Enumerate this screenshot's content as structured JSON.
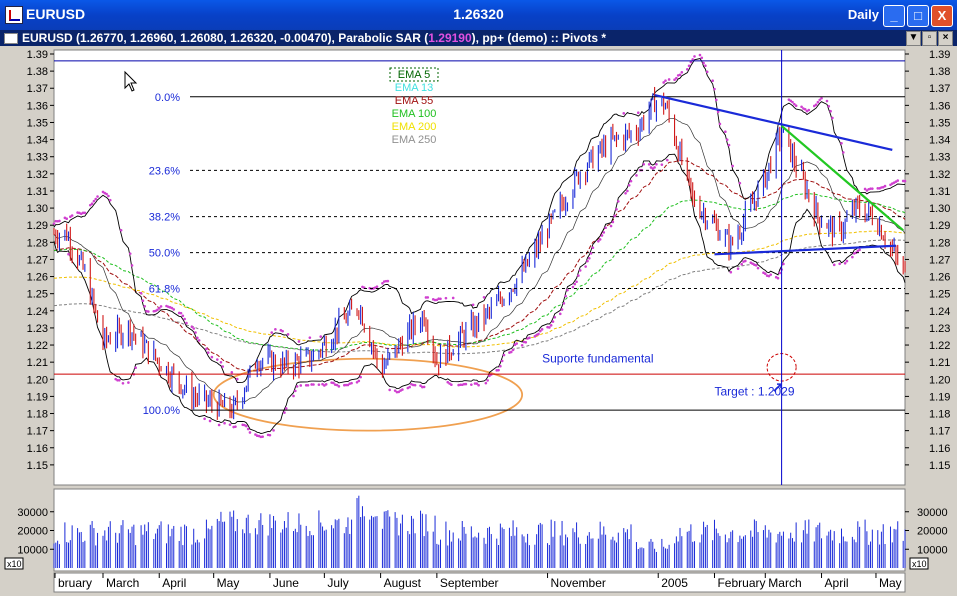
{
  "window": {
    "symbol": "EURUSD",
    "price": "1.26320",
    "period": "Daily",
    "min_label": "_",
    "max_label": "□",
    "close_label": "X",
    "colors": {
      "title_bg": "#0a4fd8",
      "info_bg": "#0a246a"
    }
  },
  "infobar": {
    "quote": "EURUSD (1.26770, 1.26960, 1.26080, 1.26320, -0.00470),",
    "sar_text": "Parabolic SAR",
    "sar_open": "(",
    "sar_value": "1.29190",
    "sar_close": "),",
    "tail": "pp+ (demo) :: Pivots *",
    "btn_min": "▼",
    "btn_restore": "▫",
    "btn_close": "×"
  },
  "chart_data": {
    "type": "candlestick",
    "symbol": "EURUSD",
    "price_axis": {
      "min": 1.14,
      "max": 1.39,
      "tick_step": 0.01,
      "tick_labels": [
        "1.39",
        "1.38",
        "1.37",
        "1.36",
        "1.35",
        "1.34",
        "1.33",
        "1.32",
        "1.31",
        "1.30",
        "1.29",
        "1.28",
        "1.27",
        "1.26",
        "1.25",
        "1.24",
        "1.23",
        "1.22",
        "1.21",
        "1.20",
        "1.19",
        "1.18",
        "1.17",
        "1.16",
        "1.15"
      ]
    },
    "volume_axis": {
      "multiplier_label": "x10",
      "tick_labels": [
        "30000",
        "20000",
        "10000"
      ],
      "tick_values": [
        30000,
        20000,
        10000
      ]
    },
    "time_axis": {
      "labels": [
        "bruary",
        "March",
        "April",
        "May",
        "June",
        "July",
        "August",
        "September",
        "November",
        "2005",
        "February",
        "March",
        "April",
        "May"
      ],
      "label_dates": [
        "2004-02-10",
        "2004-03-01",
        "2004-04-01",
        "2004-05-01",
        "2004-06-01",
        "2004-07-01",
        "2004-08-01",
        "2004-09-01",
        "2004-11-01",
        "2005-01-01",
        "2005-02-01",
        "2005-03-01",
        "2005-04-01",
        "2005-05-01"
      ]
    },
    "price_path": [
      {
        "date": "2004-02-10",
        "price": 1.285
      },
      {
        "date": "2004-02-20",
        "price": 1.262
      },
      {
        "date": "2004-03-01",
        "price": 1.222
      },
      {
        "date": "2004-03-15",
        "price": 1.23
      },
      {
        "date": "2004-04-01",
        "price": 1.21
      },
      {
        "date": "2004-04-20",
        "price": 1.19
      },
      {
        "date": "2004-05-01",
        "price": 1.185
      },
      {
        "date": "2004-05-12",
        "price": 1.182
      },
      {
        "date": "2004-05-25",
        "price": 1.212
      },
      {
        "date": "2004-06-10",
        "price": 1.208
      },
      {
        "date": "2004-06-25",
        "price": 1.213
      },
      {
        "date": "2004-07-10",
        "price": 1.232
      },
      {
        "date": "2004-07-20",
        "price": 1.243
      },
      {
        "date": "2004-08-01",
        "price": 1.205
      },
      {
        "date": "2004-08-15",
        "price": 1.225
      },
      {
        "date": "2004-08-25",
        "price": 1.238
      },
      {
        "date": "2004-09-01",
        "price": 1.21
      },
      {
        "date": "2004-09-15",
        "price": 1.225
      },
      {
        "date": "2004-10-01",
        "price": 1.24
      },
      {
        "date": "2004-10-20",
        "price": 1.265
      },
      {
        "date": "2004-11-05",
        "price": 1.295
      },
      {
        "date": "2004-11-20",
        "price": 1.323
      },
      {
        "date": "2004-12-05",
        "price": 1.338
      },
      {
        "date": "2004-12-20",
        "price": 1.345
      },
      {
        "date": "2004-12-30",
        "price": 1.362
      },
      {
        "date": "2005-01-05",
        "price": 1.36
      },
      {
        "date": "2005-01-20",
        "price": 1.305
      },
      {
        "date": "2005-02-01",
        "price": 1.29
      },
      {
        "date": "2005-02-10",
        "price": 1.278
      },
      {
        "date": "2005-02-20",
        "price": 1.298
      },
      {
        "date": "2005-03-01",
        "price": 1.318
      },
      {
        "date": "2005-03-10",
        "price": 1.345
      },
      {
        "date": "2005-03-20",
        "price": 1.32
      },
      {
        "date": "2005-03-30",
        "price": 1.295
      },
      {
        "date": "2005-04-10",
        "price": 1.285
      },
      {
        "date": "2005-04-20",
        "price": 1.3
      },
      {
        "date": "2005-04-30",
        "price": 1.295
      },
      {
        "date": "2005-05-10",
        "price": 1.275
      },
      {
        "date": "2005-05-16",
        "price": 1.263
      }
    ],
    "fibonacci": [
      {
        "label": "0.0%",
        "price": 1.365
      },
      {
        "label": "23.6%",
        "price": 1.322
      },
      {
        "label": "38.2%",
        "price": 1.295
      },
      {
        "label": "50.0%",
        "price": 1.274
      },
      {
        "label": "61.8%",
        "price": 1.253
      },
      {
        "label": "100.0%",
        "price": 1.182
      }
    ],
    "horizontal_lines": [
      {
        "price": 1.386,
        "color": "#0000aa"
      },
      {
        "price": 1.203,
        "color": "#cc0000"
      }
    ],
    "vertical_marker": {
      "date": "2005-03-10",
      "color": "#0000cc"
    },
    "trendlines": [
      {
        "from": {
          "date": "2004-12-30",
          "price": 1.366
        },
        "to": {
          "date": "2005-05-10",
          "price": 1.334
        },
        "color": "#1a2ad8"
      },
      {
        "from": {
          "date": "2005-02-01",
          "price": 1.273
        },
        "to": {
          "date": "2005-05-12",
          "price": 1.278
        },
        "color": "#1a2ad8"
      },
      {
        "from": {
          "date": "2005-03-10",
          "price": 1.348
        },
        "to": {
          "date": "2005-05-16",
          "price": 1.287
        },
        "color": "#22c822"
      }
    ],
    "ellipses": [
      {
        "center": {
          "date": "2004-07-25",
          "price": 1.191
        },
        "radius_days": 85,
        "radius_price": 0.021,
        "color": "#f0a050"
      },
      {
        "center": {
          "date": "2005-03-10",
          "price": 1.207
        },
        "radius_days": 8,
        "radius_price": 0.008,
        "color": "#cc0000",
        "dashed": true
      }
    ],
    "ema_legend": [
      {
        "label": "EMA 5",
        "color": "#006400",
        "boxed": true
      },
      {
        "label": "EMA 13",
        "color": "#40e0e0"
      },
      {
        "label": "EMA 55",
        "color": "#a01010"
      },
      {
        "label": "EMA 100",
        "color": "#20c020"
      },
      {
        "label": "EMA 200",
        "color": "#f0e000"
      },
      {
        "label": "EMA 250",
        "color": "#909090"
      }
    ],
    "annotations": [
      {
        "text": "Suporte fundamental",
        "date": "2004-10-29",
        "price": 1.212,
        "color": "#1a2ad8"
      },
      {
        "text": "Target : 1.2029",
        "date": "2005-02-01",
        "price": 1.193,
        "color": "#1a2ad8"
      }
    ],
    "colors": {
      "up": "#1a2ad8",
      "down": "#d01818",
      "sar": "#d040d0",
      "bands": "#000000",
      "volume": "#1a2ad8",
      "ema55": "#a01010",
      "ema100": "#20c020",
      "ema200": "#f0c000",
      "ema250": "#808080"
    }
  }
}
